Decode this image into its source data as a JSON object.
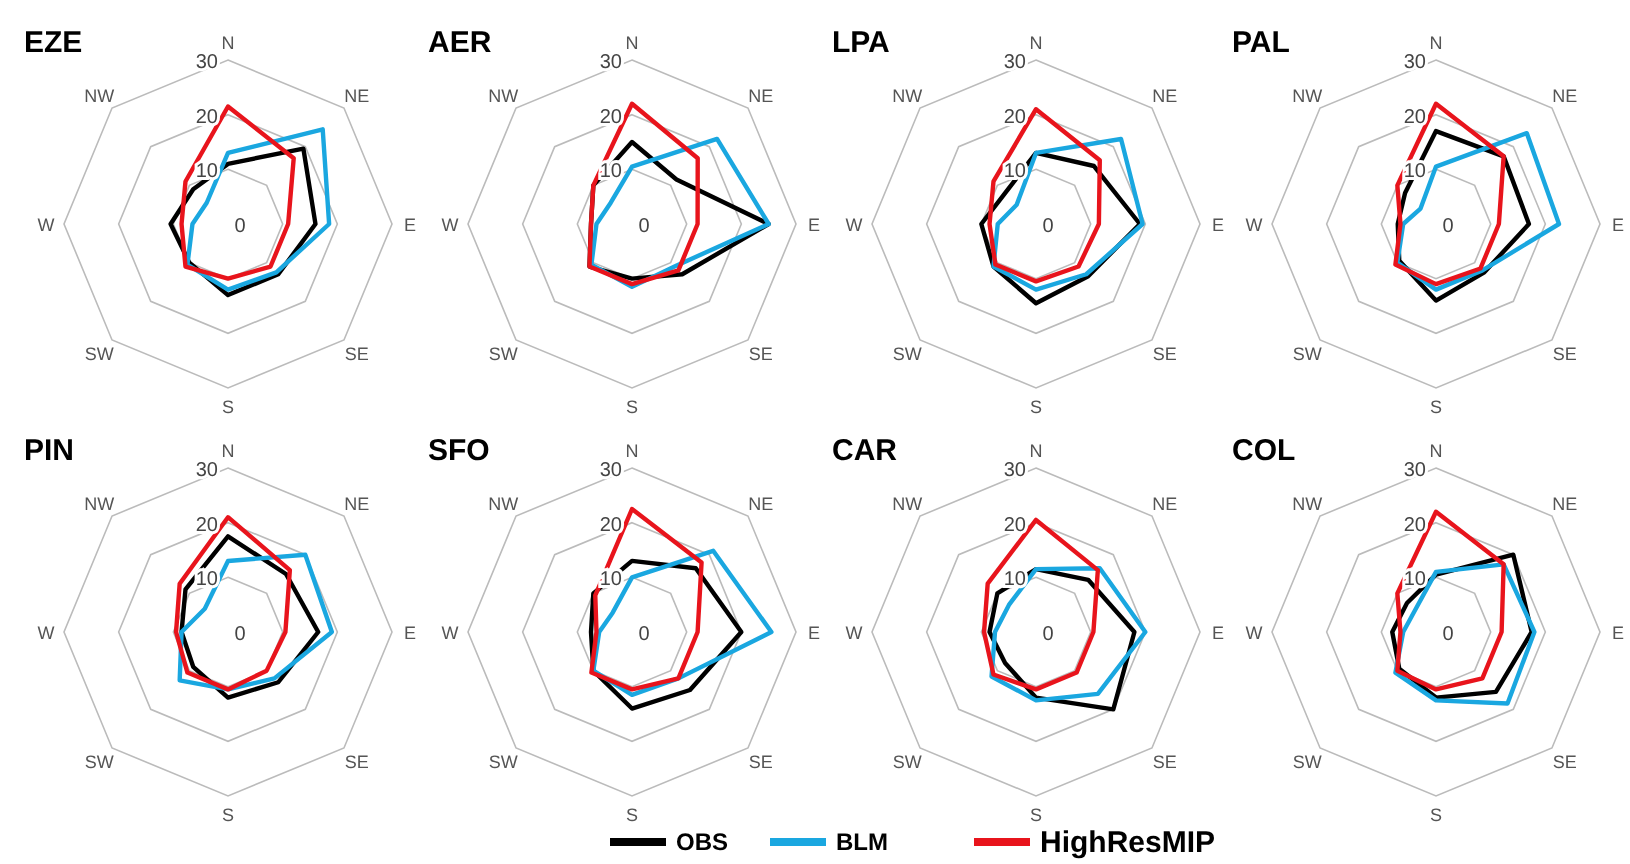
{
  "chart_data": [
    {
      "type": "radar",
      "title": "EZE",
      "categories": [
        "N",
        "NE",
        "E",
        "SE",
        "S",
        "SW",
        "W",
        "NW"
      ],
      "ylim": [
        0,
        30
      ],
      "yticks": [
        0,
        10,
        20,
        30
      ],
      "grid": true,
      "series": [
        {
          "color": "#000000",
          "values": [
            11,
            19.5,
            16,
            13,
            13,
            10,
            10.5,
            9
          ]
        },
        {
          "color": "#1aa7e0",
          "values": [
            13,
            24.5,
            18.5,
            12.5,
            12,
            10.5,
            6.5,
            5.5
          ]
        },
        {
          "color": "#e8141c",
          "values": [
            21.5,
            17,
            11,
            11,
            10,
            11,
            8.5,
            11
          ]
        }
      ]
    },
    {
      "type": "radar",
      "title": "AER",
      "categories": [
        "N",
        "NE",
        "E",
        "SE",
        "S",
        "SW",
        "W",
        "NW"
      ],
      "ylim": [
        0,
        30
      ],
      "yticks": [
        0,
        10,
        20,
        30
      ],
      "grid": true,
      "series": [
        {
          "color": "#000000",
          "values": [
            15,
            11.5,
            25,
            13,
            10,
            11,
            7.5,
            10
          ]
        },
        {
          "color": "#1aa7e0",
          "values": [
            10.5,
            22,
            25,
            11,
            11.5,
            10.5,
            6.5,
            5.5
          ]
        },
        {
          "color": "#e8141c",
          "values": [
            22,
            17,
            12,
            12,
            11,
            11,
            7.5,
            10
          ]
        }
      ]
    },
    {
      "type": "radar",
      "title": "LPA",
      "categories": [
        "N",
        "NE",
        "E",
        "SE",
        "S",
        "SW",
        "W",
        "NW"
      ],
      "ylim": [
        0,
        30
      ],
      "yticks": [
        0,
        10,
        20,
        30
      ],
      "grid": true,
      "series": [
        {
          "color": "#000000",
          "values": [
            13,
            15,
            19,
            13.5,
            14.5,
            11,
            10,
            8
          ]
        },
        {
          "color": "#1aa7e0",
          "values": [
            13,
            22,
            19.5,
            13,
            12,
            11,
            7,
            5
          ]
        },
        {
          "color": "#e8141c",
          "values": [
            21,
            16.5,
            11.5,
            11,
            10.5,
            10.5,
            8.5,
            11
          ]
        }
      ]
    },
    {
      "type": "radar",
      "title": "PAL",
      "categories": [
        "N",
        "NE",
        "E",
        "SE",
        "S",
        "SW",
        "W",
        "NW"
      ],
      "ylim": [
        0,
        30
      ],
      "yticks": [
        0,
        10,
        20,
        30
      ],
      "grid": true,
      "series": [
        {
          "color": "#000000",
          "values": [
            17,
            17.5,
            17,
            12.5,
            14,
            9.5,
            7,
            8
          ]
        },
        {
          "color": "#1aa7e0",
          "values": [
            10.5,
            23.5,
            22.5,
            12,
            12,
            10,
            6,
            4
          ]
        },
        {
          "color": "#e8141c",
          "values": [
            22,
            17.5,
            11.5,
            11.5,
            11,
            10.5,
            6.5,
            10
          ]
        }
      ]
    },
    {
      "type": "radar",
      "title": "PIN",
      "categories": [
        "N",
        "NE",
        "E",
        "SE",
        "S",
        "SW",
        "W",
        "NW"
      ],
      "ylim": [
        0,
        30
      ],
      "yticks": [
        0,
        10,
        20,
        30
      ],
      "grid": true,
      "series": [
        {
          "color": "#000000",
          "values": [
            17.5,
            15,
            16.5,
            13,
            12,
            9,
            8.5,
            11
          ]
        },
        {
          "color": "#1aa7e0",
          "values": [
            13,
            20,
            19,
            12,
            10.5,
            12.5,
            8.5,
            6
          ]
        },
        {
          "color": "#e8141c",
          "values": [
            21,
            16,
            10.5,
            10,
            10.5,
            10.5,
            9.5,
            12.5
          ]
        }
      ]
    },
    {
      "type": "radar",
      "title": "SFO",
      "categories": [
        "N",
        "NE",
        "E",
        "SE",
        "S",
        "SW",
        "W",
        "NW"
      ],
      "ylim": [
        0,
        30
      ],
      "yticks": [
        0,
        10,
        20,
        30
      ],
      "grid": true,
      "series": [
        {
          "color": "#000000",
          "values": [
            13,
            16.5,
            20,
            15,
            14,
            10,
            7.5,
            10
          ]
        },
        {
          "color": "#1aa7e0",
          "values": [
            10,
            21,
            25.5,
            12,
            11.5,
            10,
            6,
            5
          ]
        },
        {
          "color": "#e8141c",
          "values": [
            22.5,
            18,
            12,
            12,
            10.5,
            10.5,
            6.5,
            9.5
          ]
        }
      ]
    },
    {
      "type": "radar",
      "title": "CAR",
      "categories": [
        "N",
        "NE",
        "E",
        "SE",
        "S",
        "SW",
        "W",
        "NW"
      ],
      "ylim": [
        0,
        30
      ],
      "yticks": [
        0,
        10,
        20,
        30
      ],
      "grid": true,
      "series": [
        {
          "color": "#000000",
          "values": [
            11.5,
            13.5,
            18,
            20,
            12,
            8,
            8.5,
            10
          ]
        },
        {
          "color": "#1aa7e0",
          "values": [
            11.5,
            16.5,
            20,
            16,
            12.5,
            11.5,
            7.5,
            7
          ]
        },
        {
          "color": "#e8141c",
          "values": [
            20.5,
            16,
            10.5,
            10.5,
            10.5,
            11,
            9.5,
            12.5
          ]
        }
      ]
    },
    {
      "type": "radar",
      "title": "COL",
      "categories": [
        "N",
        "NE",
        "E",
        "SE",
        "S",
        "SW",
        "W",
        "NW"
      ],
      "ylim": [
        0,
        30
      ],
      "yticks": [
        0,
        10,
        20,
        30
      ],
      "grid": true,
      "legend": "bottom",
      "series": [
        {
          "name": "OBS",
          "color": "#000000",
          "values": [
            10.5,
            20,
            17.5,
            15.5,
            12,
            9.5,
            8,
            7.5
          ]
        },
        {
          "name": "BLM",
          "color": "#1aa7e0",
          "values": [
            11,
            17.5,
            18,
            18.5,
            12.5,
            10.5,
            6,
            5.5
          ]
        },
        {
          "name": "HighResMIP",
          "color": "#e8141c",
          "values": [
            22,
            17.5,
            12,
            12,
            10.5,
            10,
            6.5,
            10
          ]
        }
      ]
    }
  ]
}
